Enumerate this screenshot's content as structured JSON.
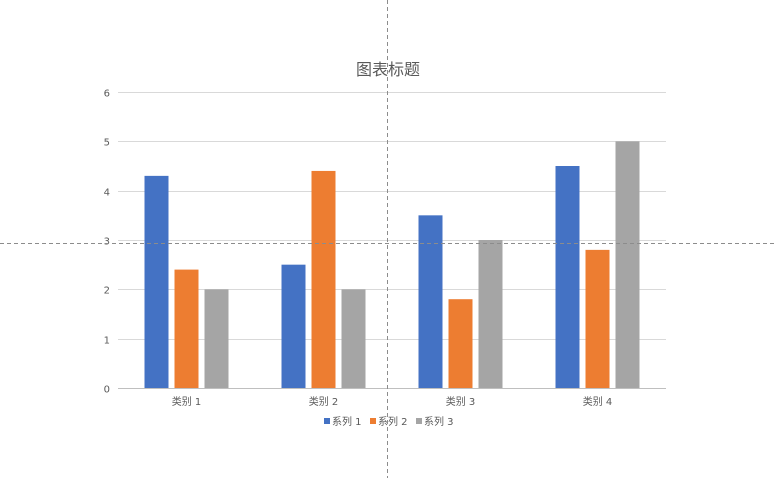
{
  "chart_data": {
    "type": "bar",
    "title": "图表标题",
    "categories": [
      "类别 1",
      "类别 2",
      "类别 3",
      "类别 4"
    ],
    "series": [
      {
        "name": "系列 1",
        "values": [
          4.3,
          2.5,
          3.5,
          4.5
        ],
        "color": "#4472C4"
      },
      {
        "name": "系列 2",
        "values": [
          2.4,
          4.4,
          1.8,
          2.8
        ],
        "color": "#ED7D31"
      },
      {
        "name": "系列 3",
        "values": [
          2,
          2,
          3,
          5
        ],
        "color": "#A5A5A5"
      }
    ],
    "ylim": [
      0,
      6
    ],
    "yticks": [
      "0",
      "1",
      "2",
      "3",
      "4",
      "5",
      "6"
    ],
    "grid": true,
    "legend": "bottom",
    "xlabel": "",
    "ylabel": ""
  }
}
